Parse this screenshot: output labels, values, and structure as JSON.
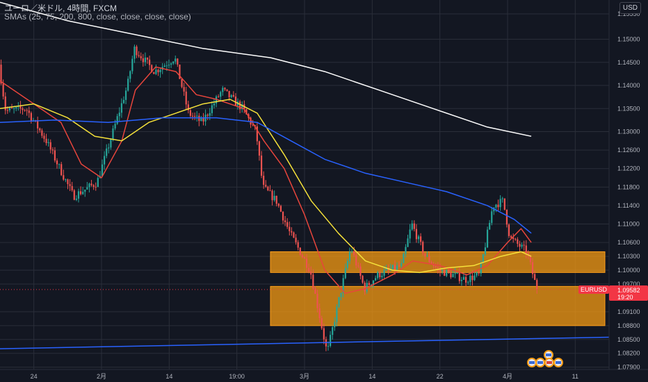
{
  "header": {
    "symbol_line": "ユーロ／米ドル, 4時間, FXCM",
    "indicator_line": "SMAs (25, 75, 200, 800, close, close, close, close)",
    "currency_button": "USD"
  },
  "price_tag": {
    "symbol": "EURUSD",
    "price": "1.09582",
    "countdown": "19:20"
  },
  "colors": {
    "background": "#131722",
    "grid": "#2a2e39",
    "up_candle": "#26a69a",
    "down_candle": "#ef5350",
    "sma25": "#e8453c",
    "sma75": "#f5e13a",
    "sma200": "#2962ff",
    "sma800": "#ffffff",
    "zone_fill": "#f59b13",
    "trendline": "#2962ff",
    "price_label": "#f23645"
  },
  "chart_data": {
    "type": "candlestick",
    "title": "ユーロ／米ドル, 4時間, FXCM",
    "y_axis_ticks": [
      "1.15550",
      "1.15000",
      "1.14500",
      "1.14000",
      "1.13500",
      "1.13000",
      "1.12600",
      "1.12200",
      "1.11800",
      "1.11400",
      "1.11000",
      "1.10600",
      "1.10300",
      "1.10000",
      "1.09700",
      "1.09100",
      "1.08800",
      "1.08500",
      "1.08200",
      "1.07900"
    ],
    "x_axis_ticks": [
      "24",
      "2月",
      "14",
      "19:00",
      "3月",
      "14",
      "22",
      "4月",
      "11"
    ],
    "ylim": [
      1.0785,
      1.1585
    ],
    "current_price": 1.09582,
    "price_anchors": [
      {
        "x": 0.0,
        "p": 1.1445
      },
      {
        "x": 0.1,
        "p": 1.1345
      },
      {
        "x": 0.4,
        "p": 1.135
      },
      {
        "x": 0.7,
        "p": 1.128
      },
      {
        "x": 1.1,
        "p": 1.116
      },
      {
        "x": 1.45,
        "p": 1.119
      },
      {
        "x": 1.6,
        "p": 1.126
      },
      {
        "x": 1.9,
        "p": 1.14
      },
      {
        "x": 2.0,
        "p": 1.148
      },
      {
        "x": 2.3,
        "p": 1.143
      },
      {
        "x": 2.6,
        "p": 1.146
      },
      {
        "x": 2.8,
        "p": 1.134
      },
      {
        "x": 3.0,
        "p": 1.132
      },
      {
        "x": 3.3,
        "p": 1.139
      },
      {
        "x": 3.6,
        "p": 1.135
      },
      {
        "x": 3.8,
        "p": 1.13
      },
      {
        "x": 3.9,
        "p": 1.118
      },
      {
        "x": 4.1,
        "p": 1.115
      },
      {
        "x": 4.3,
        "p": 1.108
      },
      {
        "x": 4.6,
        "p": 1.1
      },
      {
        "x": 4.85,
        "p": 1.082
      },
      {
        "x": 5.0,
        "p": 1.092
      },
      {
        "x": 5.2,
        "p": 1.105
      },
      {
        "x": 5.4,
        "p": 1.096
      },
      {
        "x": 5.6,
        "p": 1.099
      },
      {
        "x": 5.95,
        "p": 1.101
      },
      {
        "x": 6.1,
        "p": 1.11
      },
      {
        "x": 6.3,
        "p": 1.103
      },
      {
        "x": 6.5,
        "p": 1.1
      },
      {
        "x": 6.9,
        "p": 1.098
      },
      {
        "x": 7.1,
        "p": 1.099
      },
      {
        "x": 7.3,
        "p": 1.114
      },
      {
        "x": 7.45,
        "p": 1.115
      },
      {
        "x": 7.55,
        "p": 1.107
      },
      {
        "x": 7.8,
        "p": 1.104
      },
      {
        "x": 7.95,
        "p": 1.0958
      }
    ],
    "sma_lines": [
      {
        "name": "SMA 25",
        "period": 25,
        "color": "#e8453c",
        "points": [
          [
            0.0,
            1.141
          ],
          [
            0.5,
            1.136
          ],
          [
            0.9,
            1.132
          ],
          [
            1.2,
            1.123
          ],
          [
            1.5,
            1.12
          ],
          [
            1.8,
            1.128
          ],
          [
            2.0,
            1.139
          ],
          [
            2.3,
            1.144
          ],
          [
            2.6,
            1.143
          ],
          [
            2.9,
            1.138
          ],
          [
            3.2,
            1.137
          ],
          [
            3.6,
            1.135
          ],
          [
            3.9,
            1.128
          ],
          [
            4.2,
            1.122
          ],
          [
            4.5,
            1.112
          ],
          [
            4.8,
            1.1
          ],
          [
            5.1,
            1.095
          ],
          [
            5.4,
            1.096
          ],
          [
            5.8,
            1.099
          ],
          [
            6.1,
            1.102
          ],
          [
            6.5,
            1.101
          ],
          [
            6.9,
            1.099
          ],
          [
            7.2,
            1.101
          ],
          [
            7.5,
            1.106
          ],
          [
            7.7,
            1.109
          ],
          [
            7.85,
            1.106
          ]
        ]
      },
      {
        "name": "SMA 75",
        "period": 75,
        "color": "#f5e13a",
        "points": [
          [
            0.0,
            1.135
          ],
          [
            0.5,
            1.136
          ],
          [
            1.0,
            1.133
          ],
          [
            1.4,
            1.129
          ],
          [
            1.8,
            1.128
          ],
          [
            2.2,
            1.132
          ],
          [
            2.6,
            1.134
          ],
          [
            3.0,
            1.136
          ],
          [
            3.4,
            1.137
          ],
          [
            3.8,
            1.134
          ],
          [
            4.2,
            1.125
          ],
          [
            4.6,
            1.115
          ],
          [
            5.0,
            1.108
          ],
          [
            5.4,
            1.102
          ],
          [
            5.8,
            1.1
          ],
          [
            6.2,
            1.0995
          ],
          [
            6.6,
            1.1005
          ],
          [
            7.0,
            1.101
          ],
          [
            7.4,
            1.103
          ],
          [
            7.7,
            1.104
          ],
          [
            7.85,
            1.103
          ]
        ]
      },
      {
        "name": "SMA 200",
        "period": 200,
        "color": "#2962ff",
        "points": [
          [
            0.0,
            1.132
          ],
          [
            0.8,
            1.1325
          ],
          [
            1.6,
            1.132
          ],
          [
            2.4,
            1.133
          ],
          [
            3.2,
            1.133
          ],
          [
            3.8,
            1.132
          ],
          [
            4.3,
            1.128
          ],
          [
            4.8,
            1.124
          ],
          [
            5.4,
            1.121
          ],
          [
            6.0,
            1.119
          ],
          [
            6.6,
            1.117
          ],
          [
            7.2,
            1.114
          ],
          [
            7.6,
            1.111
          ],
          [
            7.85,
            1.108
          ]
        ]
      },
      {
        "name": "SMA 800",
        "period": 800,
        "color": "#ffffff",
        "points": [
          [
            0.0,
            1.158
          ],
          [
            1.0,
            1.154
          ],
          [
            2.0,
            1.151
          ],
          [
            3.0,
            1.148
          ],
          [
            4.0,
            1.146
          ],
          [
            4.8,
            1.143
          ],
          [
            5.6,
            1.139
          ],
          [
            6.4,
            1.135
          ],
          [
            7.2,
            1.131
          ],
          [
            7.85,
            1.129
          ]
        ]
      }
    ],
    "zones": [
      {
        "name": "resistance-zone",
        "from": 1.0995,
        "to": 1.104
      },
      {
        "name": "support-zone",
        "from": 1.088,
        "to": 1.0965
      }
    ],
    "trendline": {
      "start": [
        0.0,
        1.083
      ],
      "end": [
        9.0,
        1.0855
      ]
    },
    "grid": true
  }
}
